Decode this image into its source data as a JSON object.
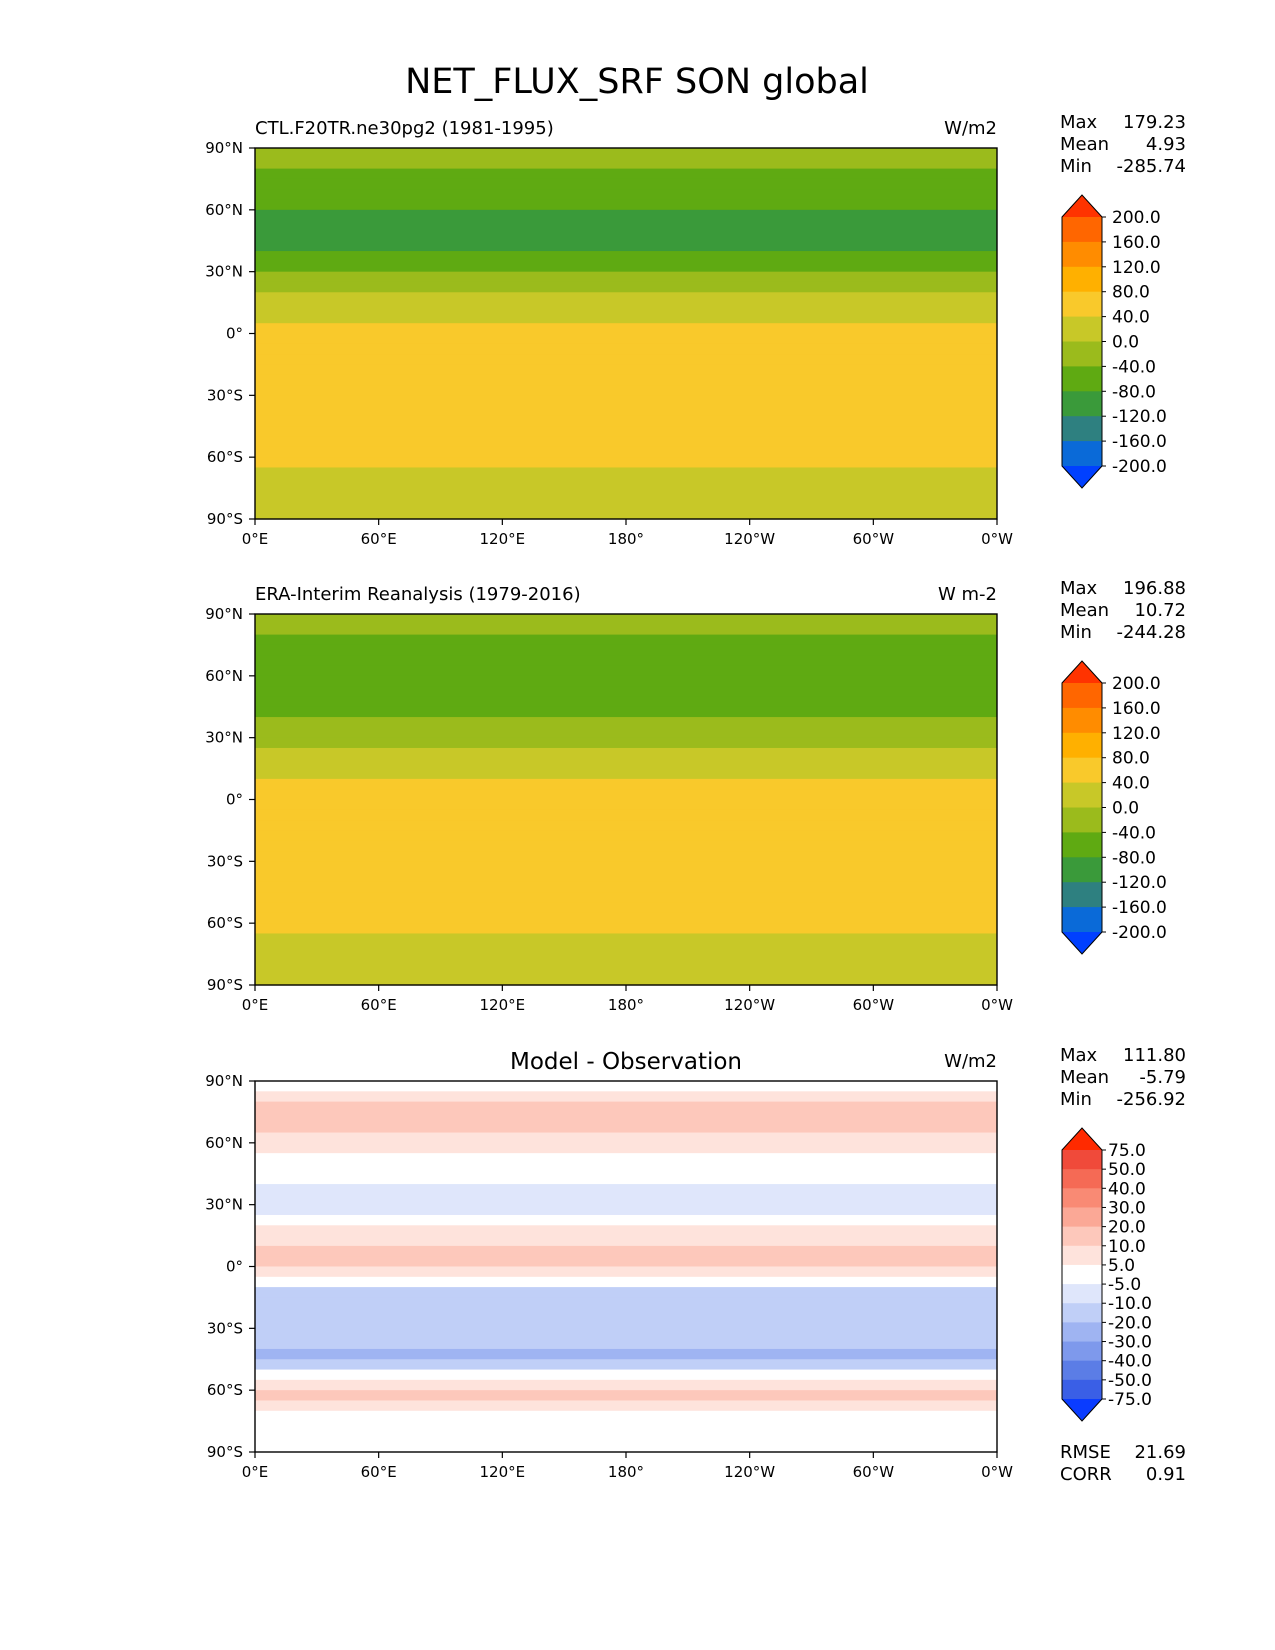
{
  "figure": {
    "title": "NET_FLUX_SRF SON global"
  },
  "chart_data": [
    {
      "type": "heatmap",
      "id": "model",
      "title": "CTL.F20TR.ne30pg2 (1981-1995)",
      "units": "W/m2",
      "stats": [
        {
          "label": "Max",
          "value": "179.23"
        },
        {
          "label": "Mean",
          "value": "4.93"
        },
        {
          "label": "Min",
          "value": "-285.74"
        }
      ],
      "colorbar": {
        "labels": [
          "200.0",
          "160.0",
          "120.0",
          "80.0",
          "40.0",
          "0.0",
          "-40.0",
          "-80.0",
          "-120.0",
          "-160.0",
          "-200.0"
        ],
        "colors": [
          "#ff3300",
          "#ff6600",
          "#ff8c00",
          "#ffb000",
          "#f9c92b",
          "#c8c828",
          "#9bbb1c",
          "#5faa12",
          "#3a9a3a",
          "#2e8080",
          "#0a6ad8",
          "#0040ff"
        ]
      },
      "xticks": [
        "0°E",
        "60°E",
        "120°E",
        "180°",
        "120°W",
        "60°W",
        "0°W"
      ],
      "yticks": [
        "90°N",
        "60°N",
        "30°N",
        "0°",
        "30°S",
        "60°S",
        "90°S"
      ],
      "xlim": [
        0,
        360
      ],
      "ylim": [
        -90,
        90
      ],
      "zonal_profile": {
        "lat": [
          90,
          75,
          60,
          45,
          30,
          15,
          0,
          -15,
          -30,
          -45,
          -60,
          -75,
          -90
        ],
        "value": [
          0,
          -60,
          -80,
          -90,
          -40,
          20,
          50,
          40,
          60,
          40,
          60,
          0,
          0
        ]
      }
    },
    {
      "type": "heatmap",
      "id": "obs",
      "title": "ERA-Interim Reanalysis (1979-2016)",
      "units": "W m-2",
      "stats": [
        {
          "label": "Max",
          "value": "196.88"
        },
        {
          "label": "Mean",
          "value": "10.72"
        },
        {
          "label": "Min",
          "value": "-244.28"
        }
      ],
      "colorbar": {
        "labels": [
          "200.0",
          "160.0",
          "120.0",
          "80.0",
          "40.0",
          "0.0",
          "-40.0",
          "-80.0",
          "-120.0",
          "-160.0",
          "-200.0"
        ],
        "colors": [
          "#ff3300",
          "#ff6600",
          "#ff8c00",
          "#ffb000",
          "#f9c92b",
          "#c8c828",
          "#9bbb1c",
          "#5faa12",
          "#3a9a3a",
          "#2e8080",
          "#0a6ad8",
          "#0040ff"
        ]
      },
      "xticks": [
        "0°E",
        "60°E",
        "120°E",
        "180°",
        "120°W",
        "60°W",
        "0°W"
      ],
      "yticks": [
        "90°N",
        "60°N",
        "30°N",
        "0°",
        "30°S",
        "60°S",
        "90°S"
      ],
      "xlim": [
        0,
        360
      ],
      "ylim": [
        -90,
        90
      ],
      "zonal_profile": {
        "lat": [
          90,
          75,
          60,
          45,
          30,
          15,
          0,
          -15,
          -30,
          -45,
          -60,
          -75,
          -90
        ],
        "value": [
          0,
          -70,
          -60,
          -60,
          -20,
          30,
          60,
          50,
          60,
          50,
          60,
          0,
          0
        ]
      }
    },
    {
      "type": "heatmap",
      "id": "diff",
      "title": "Model - Observation",
      "units": "W/m2",
      "stats": [
        {
          "label": "Max",
          "value": "111.80"
        },
        {
          "label": "Mean",
          "value": "-5.79"
        },
        {
          "label": "Min",
          "value": "-256.92"
        }
      ],
      "extra_stats": [
        {
          "label": "RMSE",
          "value": "21.69"
        },
        {
          "label": "CORR",
          "value": "0.91"
        }
      ],
      "colorbar": {
        "labels": [
          "75.0",
          "50.0",
          "40.0",
          "30.0",
          "20.0",
          "10.0",
          "5.0",
          "-5.0",
          "-10.0",
          "-20.0",
          "-30.0",
          "-40.0",
          "-50.0",
          "-75.0"
        ],
        "colors": [
          "#ff2a00",
          "#f04a3a",
          "#f56a55",
          "#f98a74",
          "#fba896",
          "#fdc8bb",
          "#fee3dc",
          "#ffffff",
          "#dfe6fb",
          "#c0cff7",
          "#9fb4f2",
          "#7e99ec",
          "#5b7de6",
          "#3a5fe6",
          "#0a3cff"
        ]
      },
      "xticks": [
        "0°E",
        "60°E",
        "120°E",
        "180°",
        "120°W",
        "60°W",
        "0°W"
      ],
      "yticks": [
        "90°N",
        "60°N",
        "30°N",
        "0°",
        "30°S",
        "60°S",
        "90°S"
      ],
      "xlim": [
        0,
        360
      ],
      "ylim": [
        -90,
        90
      ],
      "zonal_profile": {
        "lat": [
          90,
          75,
          60,
          45,
          30,
          15,
          0,
          -15,
          -30,
          -45,
          -60,
          -75,
          -90
        ],
        "value": [
          0,
          15,
          8,
          -3,
          -8,
          8,
          12,
          -20,
          -12,
          -25,
          15,
          0,
          0
        ]
      }
    }
  ]
}
